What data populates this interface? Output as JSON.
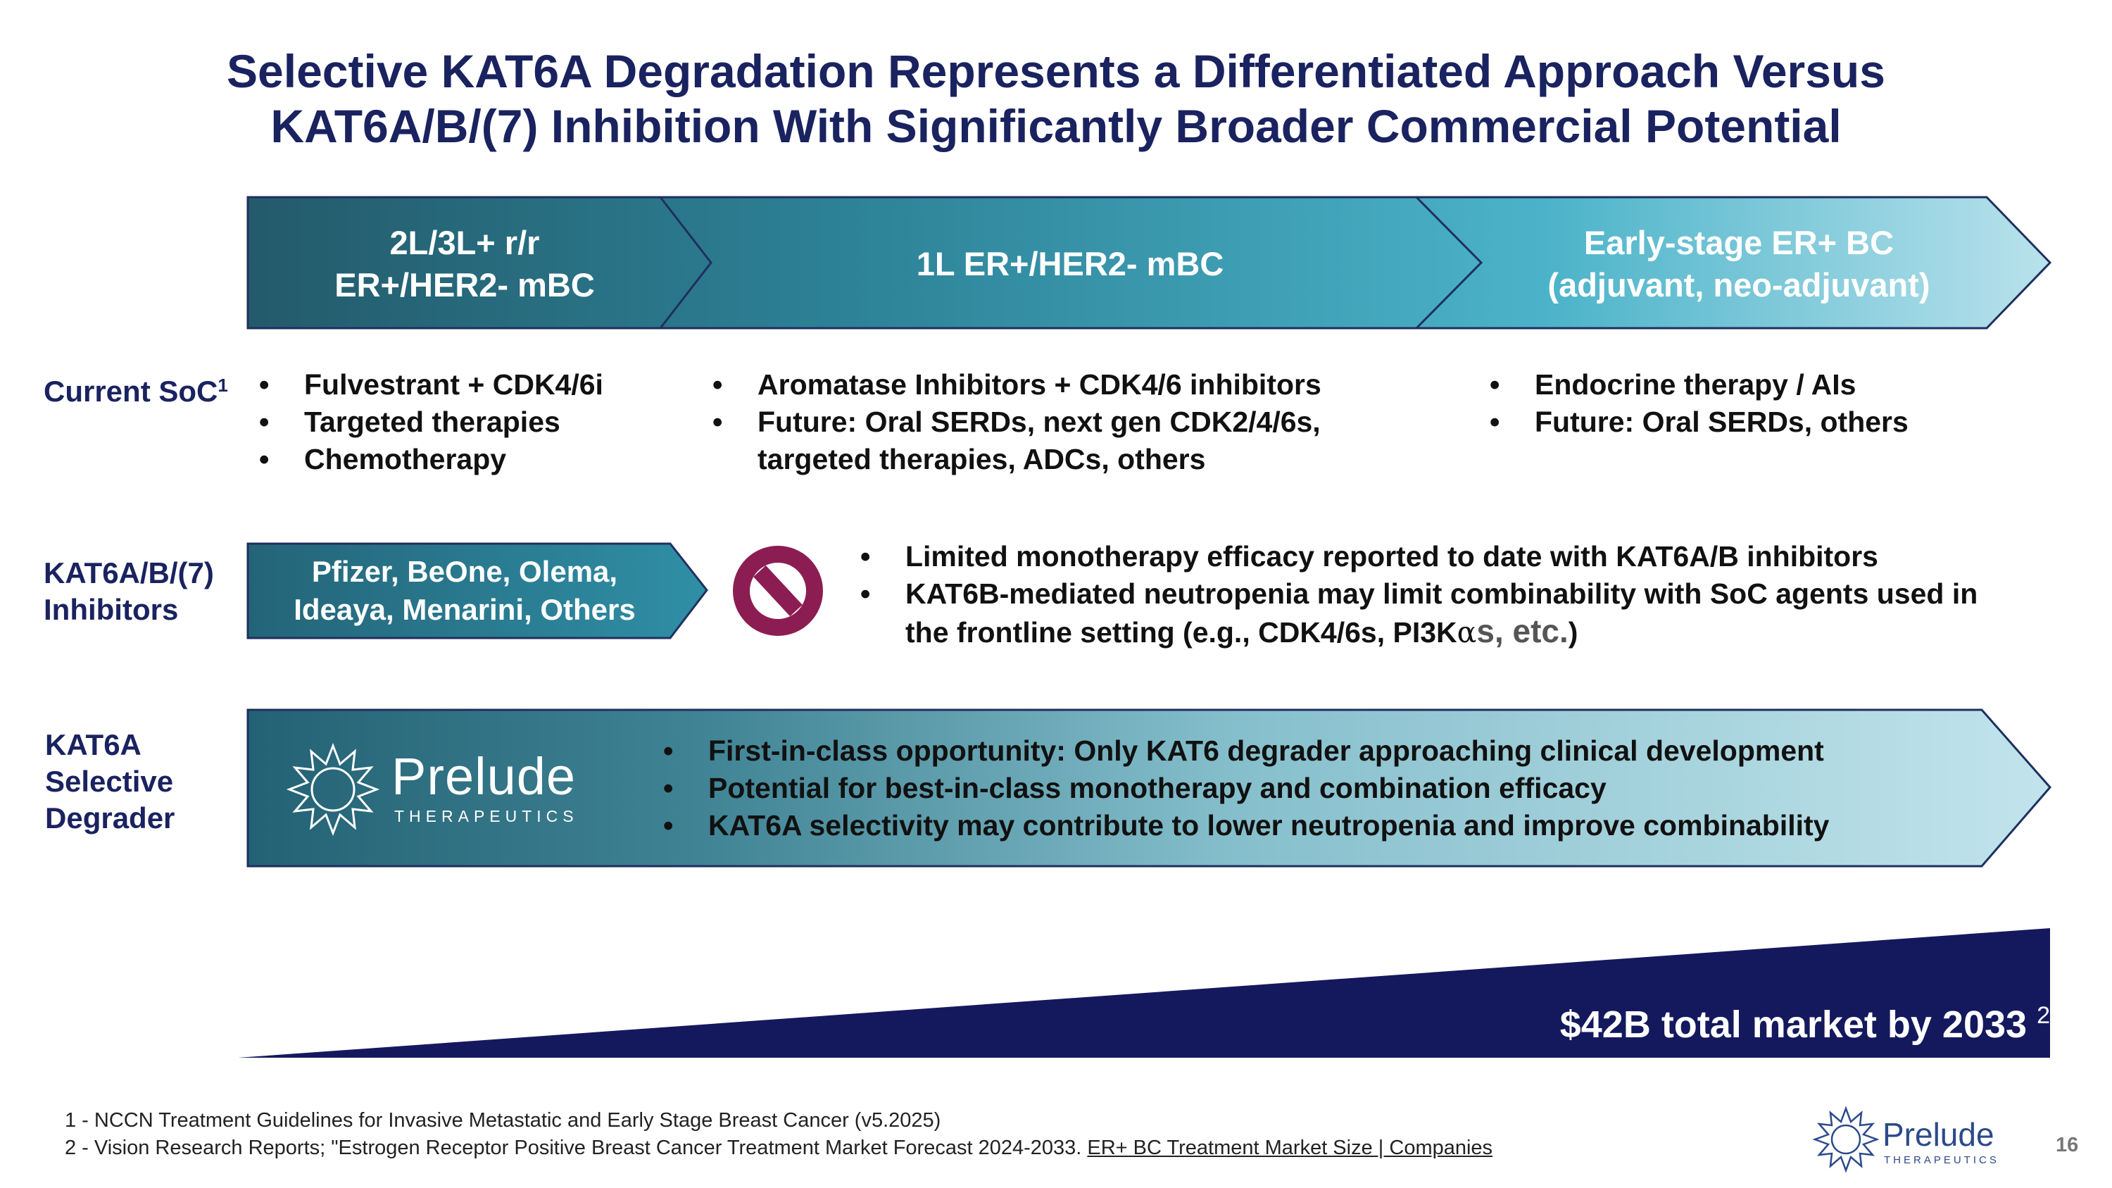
{
  "title": {
    "line1": "Selective KAT6A Degradation Represents a Differentiated Approach Versus",
    "line2": "KAT6A/B/(7) Inhibition With Significantly Broader Commercial Potential"
  },
  "stages": [
    {
      "line1": "2L/3L+ r/r",
      "line2": "ER+/HER2- mBC"
    },
    {
      "line1": "1L ER+/HER2- mBC"
    },
    {
      "line1": "Early-stage ER+ BC",
      "line2": "(adjuvant, neo-adjuvant)"
    }
  ],
  "current_soc": {
    "label": "Current SoC",
    "superscript": "1",
    "col1": [
      "Fulvestrant + CDK4/6i",
      "Targeted therapies",
      "Chemotherapy"
    ],
    "col2": [
      "Aromatase Inhibitors + CDK4/6 inhibitors",
      "Future: Oral SERDs, next gen CDK2/4/6s, targeted therapies, ADCs, others"
    ],
    "col3": [
      "Endocrine therapy / AIs",
      "Future: Oral SERDs, others"
    ]
  },
  "inhibitors": {
    "label_line1": "KAT6A/B/(7)",
    "label_line2": "Inhibitors",
    "box_line1": "Pfizer, BeOne, Olema,",
    "box_line2": "Ideaya, Menarini, Others",
    "bullet1": "Limited monotherapy efficacy reported to date with KAT6A/B inhibitors",
    "bullet2_main": "KAT6B-mediated neutropenia may limit combinability with SoC agents used in the frontline setting (e.g., CDK4/6s, PI3K",
    "bullet2_alpha": "α",
    "bullet2_etc": "s, etc.",
    "bullet2_end": ")"
  },
  "degrader": {
    "label_line1": "KAT6A",
    "label_line2": "Selective",
    "label_line3": "Degrader",
    "logo_name": "Prelude",
    "logo_sub": "THERAPEUTICS",
    "bullets": [
      "First-in-class opportunity: Only KAT6 degrader approaching clinical development",
      "Potential for best-in-class monotherapy and combination efficacy",
      "KAT6A selectivity may contribute to lower neutropenia and improve combinability"
    ]
  },
  "market": {
    "text": "$42B total market by 2033",
    "superscript": "2"
  },
  "footnotes": {
    "note1": "1 - NCCN Treatment Guidelines for Invasive Metastatic and Early Stage Breast Cancer (v5.2025)",
    "note2_prefix": "2 - Vision Research Reports; \"Estrogen Receptor Positive Breast Cancer Treatment Market Forecast 2024-2033.",
    "note2_link": "ER+ BC Treatment Market Size | Companies"
  },
  "footer_logo": {
    "name": "Prelude",
    "sub": "THERAPEUTICS"
  },
  "page_number": "16",
  "colors": {
    "navy": "#1a2360",
    "teal_dark": "#235d6e",
    "teal_mid": "#3390a6",
    "teal_light": "#b8dde7",
    "prohibit": "#8c1d52"
  }
}
